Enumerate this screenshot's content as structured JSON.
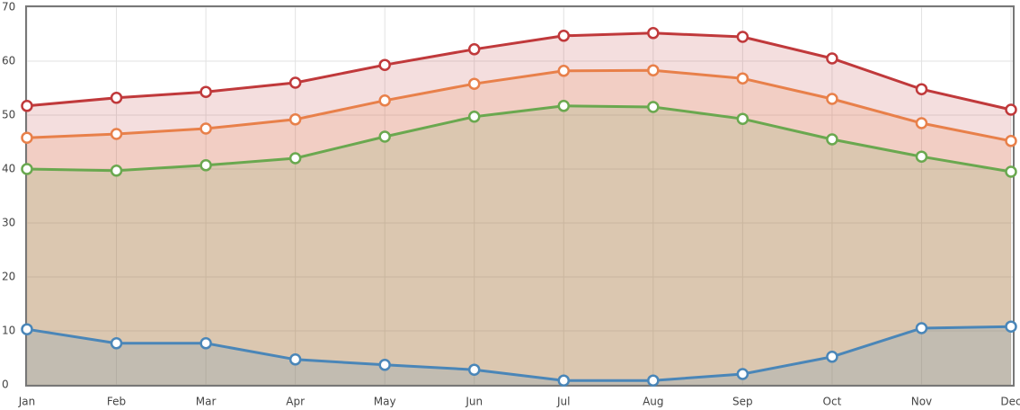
{
  "chart_data": {
    "type": "area",
    "categories": [
      "Jan",
      "Feb",
      "Mar",
      "Apr",
      "May",
      "Jun",
      "Jul",
      "Aug",
      "Sep",
      "Oct",
      "Nov",
      "Dec"
    ],
    "series": [
      {
        "color": "#c0393b",
        "values": [
          51.7,
          53.2,
          54.3,
          56,
          59.3,
          62.2,
          64.7,
          65.2,
          64.5,
          60.5,
          54.8,
          51
        ]
      },
      {
        "color": "#e8804a",
        "values": [
          45.8,
          46.5,
          47.5,
          49.2,
          52.7,
          55.8,
          58.2,
          58.3,
          56.8,
          53,
          48.5,
          45.2
        ]
      },
      {
        "color": "#6aa84f",
        "values": [
          40,
          39.7,
          40.7,
          42,
          46,
          49.7,
          51.7,
          51.5,
          49.3,
          45.5,
          42.3,
          39.5
        ]
      },
      {
        "color": "#4a86b8",
        "values": [
          10.3,
          7.7,
          7.7,
          4.7,
          3.7,
          2.8,
          0.8,
          0.8,
          2,
          5.2,
          10.5,
          10.8
        ]
      }
    ],
    "ylim": [
      0,
      70
    ],
    "yticks": [
      0,
      10,
      20,
      30,
      40,
      50,
      60,
      70
    ],
    "grid": true
  }
}
